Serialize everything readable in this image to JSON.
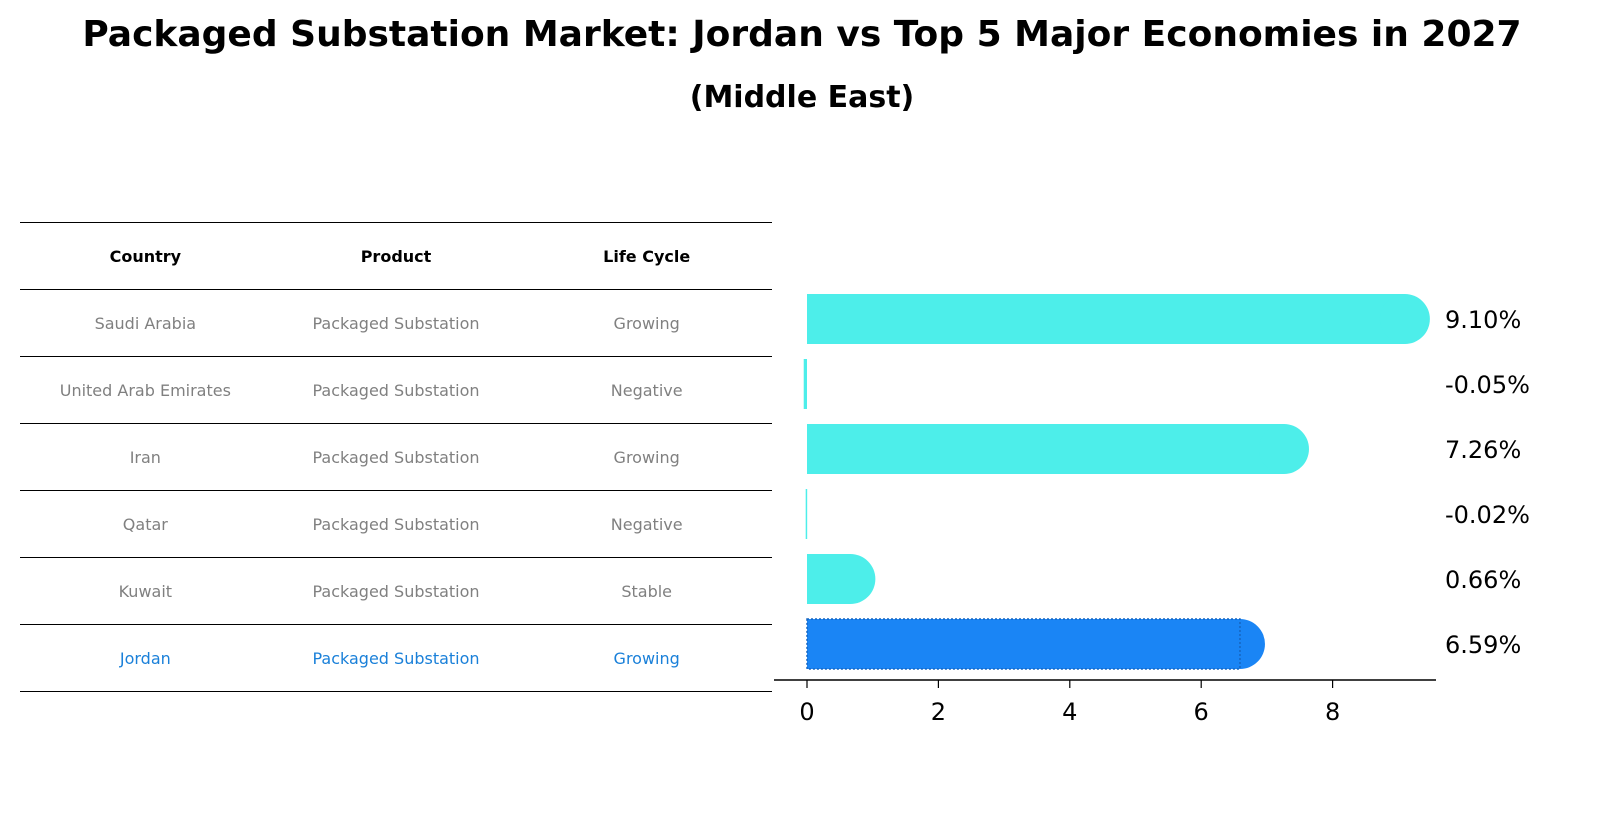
{
  "title": "Packaged Substation Market: Jordan vs Top 5 Major Economies in 2027",
  "subtitle": "(Middle East)",
  "table": {
    "headers": [
      "Country",
      "Product",
      "Life Cycle"
    ],
    "rows": [
      {
        "country": "Saudi Arabia",
        "product": "Packaged Substation",
        "life_cycle": "Growing"
      },
      {
        "country": "United Arab Emirates",
        "product": "Packaged Substation",
        "life_cycle": "Negative"
      },
      {
        "country": "Iran",
        "product": "Packaged Substation",
        "life_cycle": "Growing"
      },
      {
        "country": "Qatar",
        "product": "Packaged Substation",
        "life_cycle": "Negative"
      },
      {
        "country": "Kuwait",
        "product": "Packaged Substation",
        "life_cycle": "Stable"
      },
      {
        "country": "Jordan",
        "product": "Packaged Substation",
        "life_cycle": "Growing"
      }
    ]
  },
  "chart_data": {
    "type": "bar",
    "orientation": "horizontal",
    "categories": [
      "Saudi Arabia",
      "United Arab Emirates",
      "Iran",
      "Qatar",
      "Kuwait",
      "Jordan"
    ],
    "values": [
      9.1,
      -0.05,
      7.26,
      -0.02,
      0.66,
      6.59
    ],
    "data_labels": [
      "9.10%",
      "-0.05%",
      "7.26%",
      "-0.02%",
      "0.66%",
      "6.59%"
    ],
    "highlight": "Jordan",
    "xlim": [
      -0.5,
      9.6
    ],
    "xticks": [
      0,
      2,
      4,
      6,
      8
    ],
    "grid": false,
    "colors": {
      "default": "#4deeea",
      "highlight": "#1a85f5"
    }
  }
}
